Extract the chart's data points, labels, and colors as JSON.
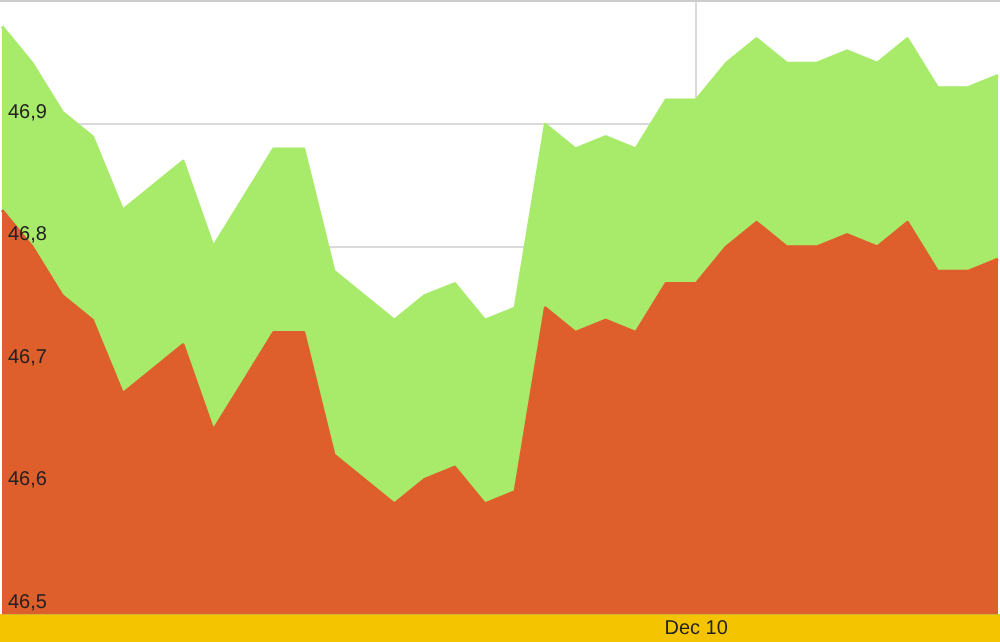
{
  "chart_data": {
    "type": "area",
    "categories": [
      null,
      null,
      null,
      null,
      null,
      null,
      null,
      null,
      null,
      null,
      null,
      null,
      null,
      null,
      null,
      null,
      null,
      null,
      null,
      null,
      null,
      null,
      null,
      "Dec 10",
      null,
      null,
      null,
      null,
      null,
      null,
      null,
      null,
      null,
      null
    ],
    "series": [
      {
        "color": "#a8ea6a",
        "values": [
          46.98,
          46.95,
          46.91,
          46.89,
          46.83,
          46.85,
          46.87,
          46.8,
          46.84,
          46.88,
          46.88,
          46.78,
          46.76,
          46.74,
          46.76,
          46.77,
          46.74,
          46.75,
          46.9,
          46.88,
          46.89,
          46.88,
          46.92,
          46.92,
          46.95,
          46.97,
          46.95,
          46.95,
          46.96,
          46.95,
          46.97,
          46.93,
          46.93,
          46.94
        ]
      },
      {
        "color": "#de5f2b",
        "values": [
          46.83,
          46.8,
          46.76,
          46.74,
          46.68,
          46.7,
          46.72,
          46.65,
          46.69,
          46.73,
          46.73,
          46.63,
          46.61,
          46.59,
          46.61,
          46.62,
          46.59,
          46.6,
          46.75,
          46.73,
          46.74,
          46.73,
          46.77,
          46.77,
          46.8,
          46.82,
          46.8,
          46.8,
          46.81,
          46.8,
          46.82,
          46.78,
          46.78,
          46.79
        ]
      }
    ],
    "ylim": [
      46.5,
      47.0
    ],
    "yticks": [
      {
        "value": 46.5,
        "label": "46,5"
      },
      {
        "value": 46.6,
        "label": "46,6"
      },
      {
        "value": 46.7,
        "label": "46,7"
      },
      {
        "value": 46.8,
        "label": "46,8"
      },
      {
        "value": 46.9,
        "label": "46,9"
      }
    ],
    "grid": true,
    "legend": false
  }
}
